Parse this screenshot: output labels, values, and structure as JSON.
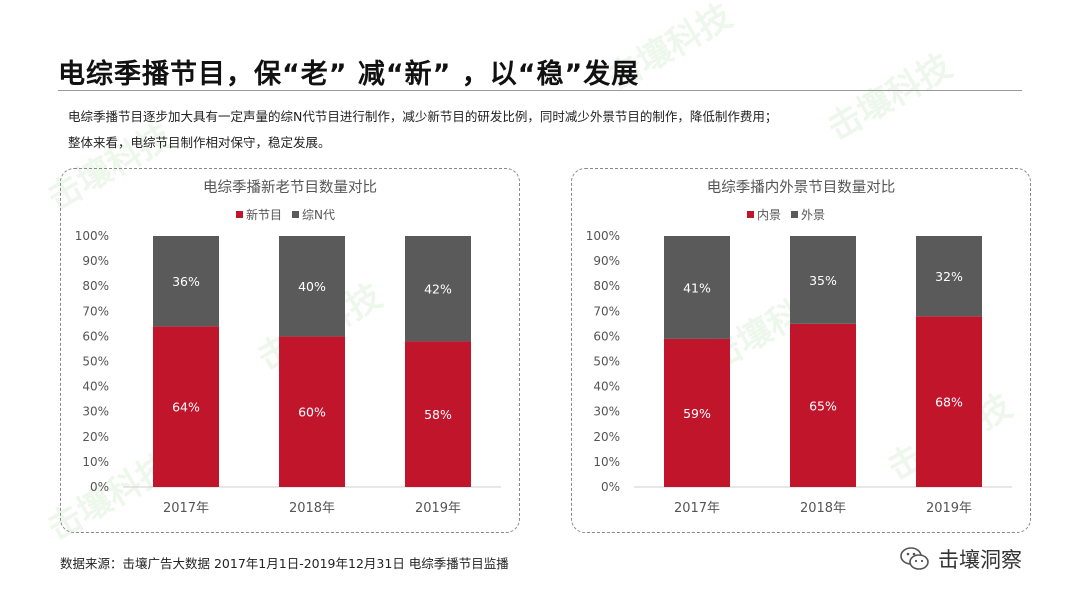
{
  "title": "电综季播节目，保“老” 减“新” ，以“稳”发展",
  "description": {
    "line1": "电综季播节目逐步加大具有一定声量的综N代节目进行制作，减少新节目的研发比例，同时减少外景节目的制作，降低制作费用；",
    "line2": "整体来看，电综节目制作相对保守，稳定发展。"
  },
  "source": "数据来源：击壤广告大数据 2017年1月1日-2019年12月31日 电综季播节目监播",
  "brand": "击壤洞察",
  "watermark": "击壤科技",
  "colors": {
    "red": "#c1152c",
    "gray": "#5a5a5a"
  },
  "chart_data": [
    {
      "type": "bar",
      "stacked": true,
      "title": "电综季播新老节目数量对比",
      "categories": [
        "2017年",
        "2018年",
        "2019年"
      ],
      "series": [
        {
          "name": "新节目",
          "values": [
            64,
            60,
            58
          ],
          "labels": [
            "64%",
            "60%",
            "58%"
          ],
          "color": "#c1152c"
        },
        {
          "name": "综N代",
          "values": [
            36,
            40,
            42
          ],
          "labels": [
            "36%",
            "40%",
            "42%"
          ],
          "color": "#5a5a5a"
        }
      ],
      "yticks": [
        "0%",
        "10%",
        "20%",
        "30%",
        "40%",
        "50%",
        "60%",
        "70%",
        "80%",
        "90%",
        "100%"
      ],
      "ylim": [
        0,
        100
      ],
      "legend": "top"
    },
    {
      "type": "bar",
      "stacked": true,
      "title": "电综季播内外景节目数量对比",
      "categories": [
        "2017年",
        "2018年",
        "2019年"
      ],
      "series": [
        {
          "name": "内景",
          "values": [
            59,
            65,
            68
          ],
          "labels": [
            "59%",
            "65%",
            "68%"
          ],
          "color": "#c1152c"
        },
        {
          "name": "外景",
          "values": [
            41,
            35,
            32
          ],
          "labels": [
            "41%",
            "35%",
            "32%"
          ],
          "color": "#5a5a5a"
        }
      ],
      "yticks": [
        "0%",
        "10%",
        "20%",
        "30%",
        "40%",
        "50%",
        "60%",
        "70%",
        "80%",
        "90%",
        "100%"
      ],
      "ylim": [
        0,
        100
      ],
      "legend": "top"
    }
  ]
}
